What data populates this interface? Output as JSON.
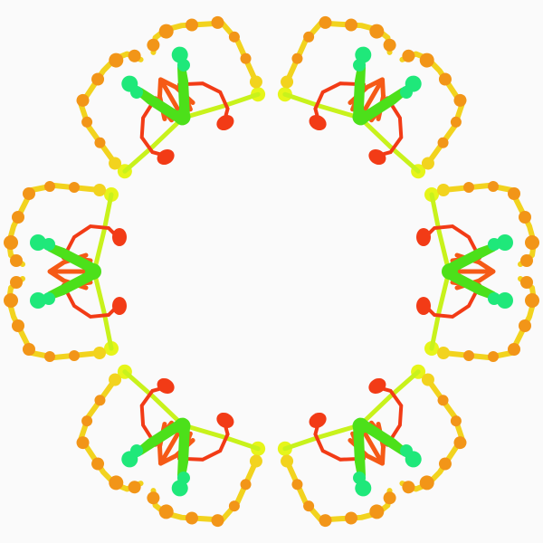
{
  "artwork": {
    "symmetry_order": 6,
    "background_color": "#fafafa",
    "palette": {
      "outer_loop_yellow": "#f2d31e",
      "outer_loop_light_yellow": "#e6f51a",
      "outer_loop_orange": "#f5a21a",
      "outer_nodes_orange": "#f29518",
      "inner_ribs_orange": "#f55a16",
      "red_tendrils": "#f23b16",
      "green_frame": "#4ce01a",
      "mint_tips": "#1fe87a",
      "lime_spur": "#c8f21c"
    }
  }
}
